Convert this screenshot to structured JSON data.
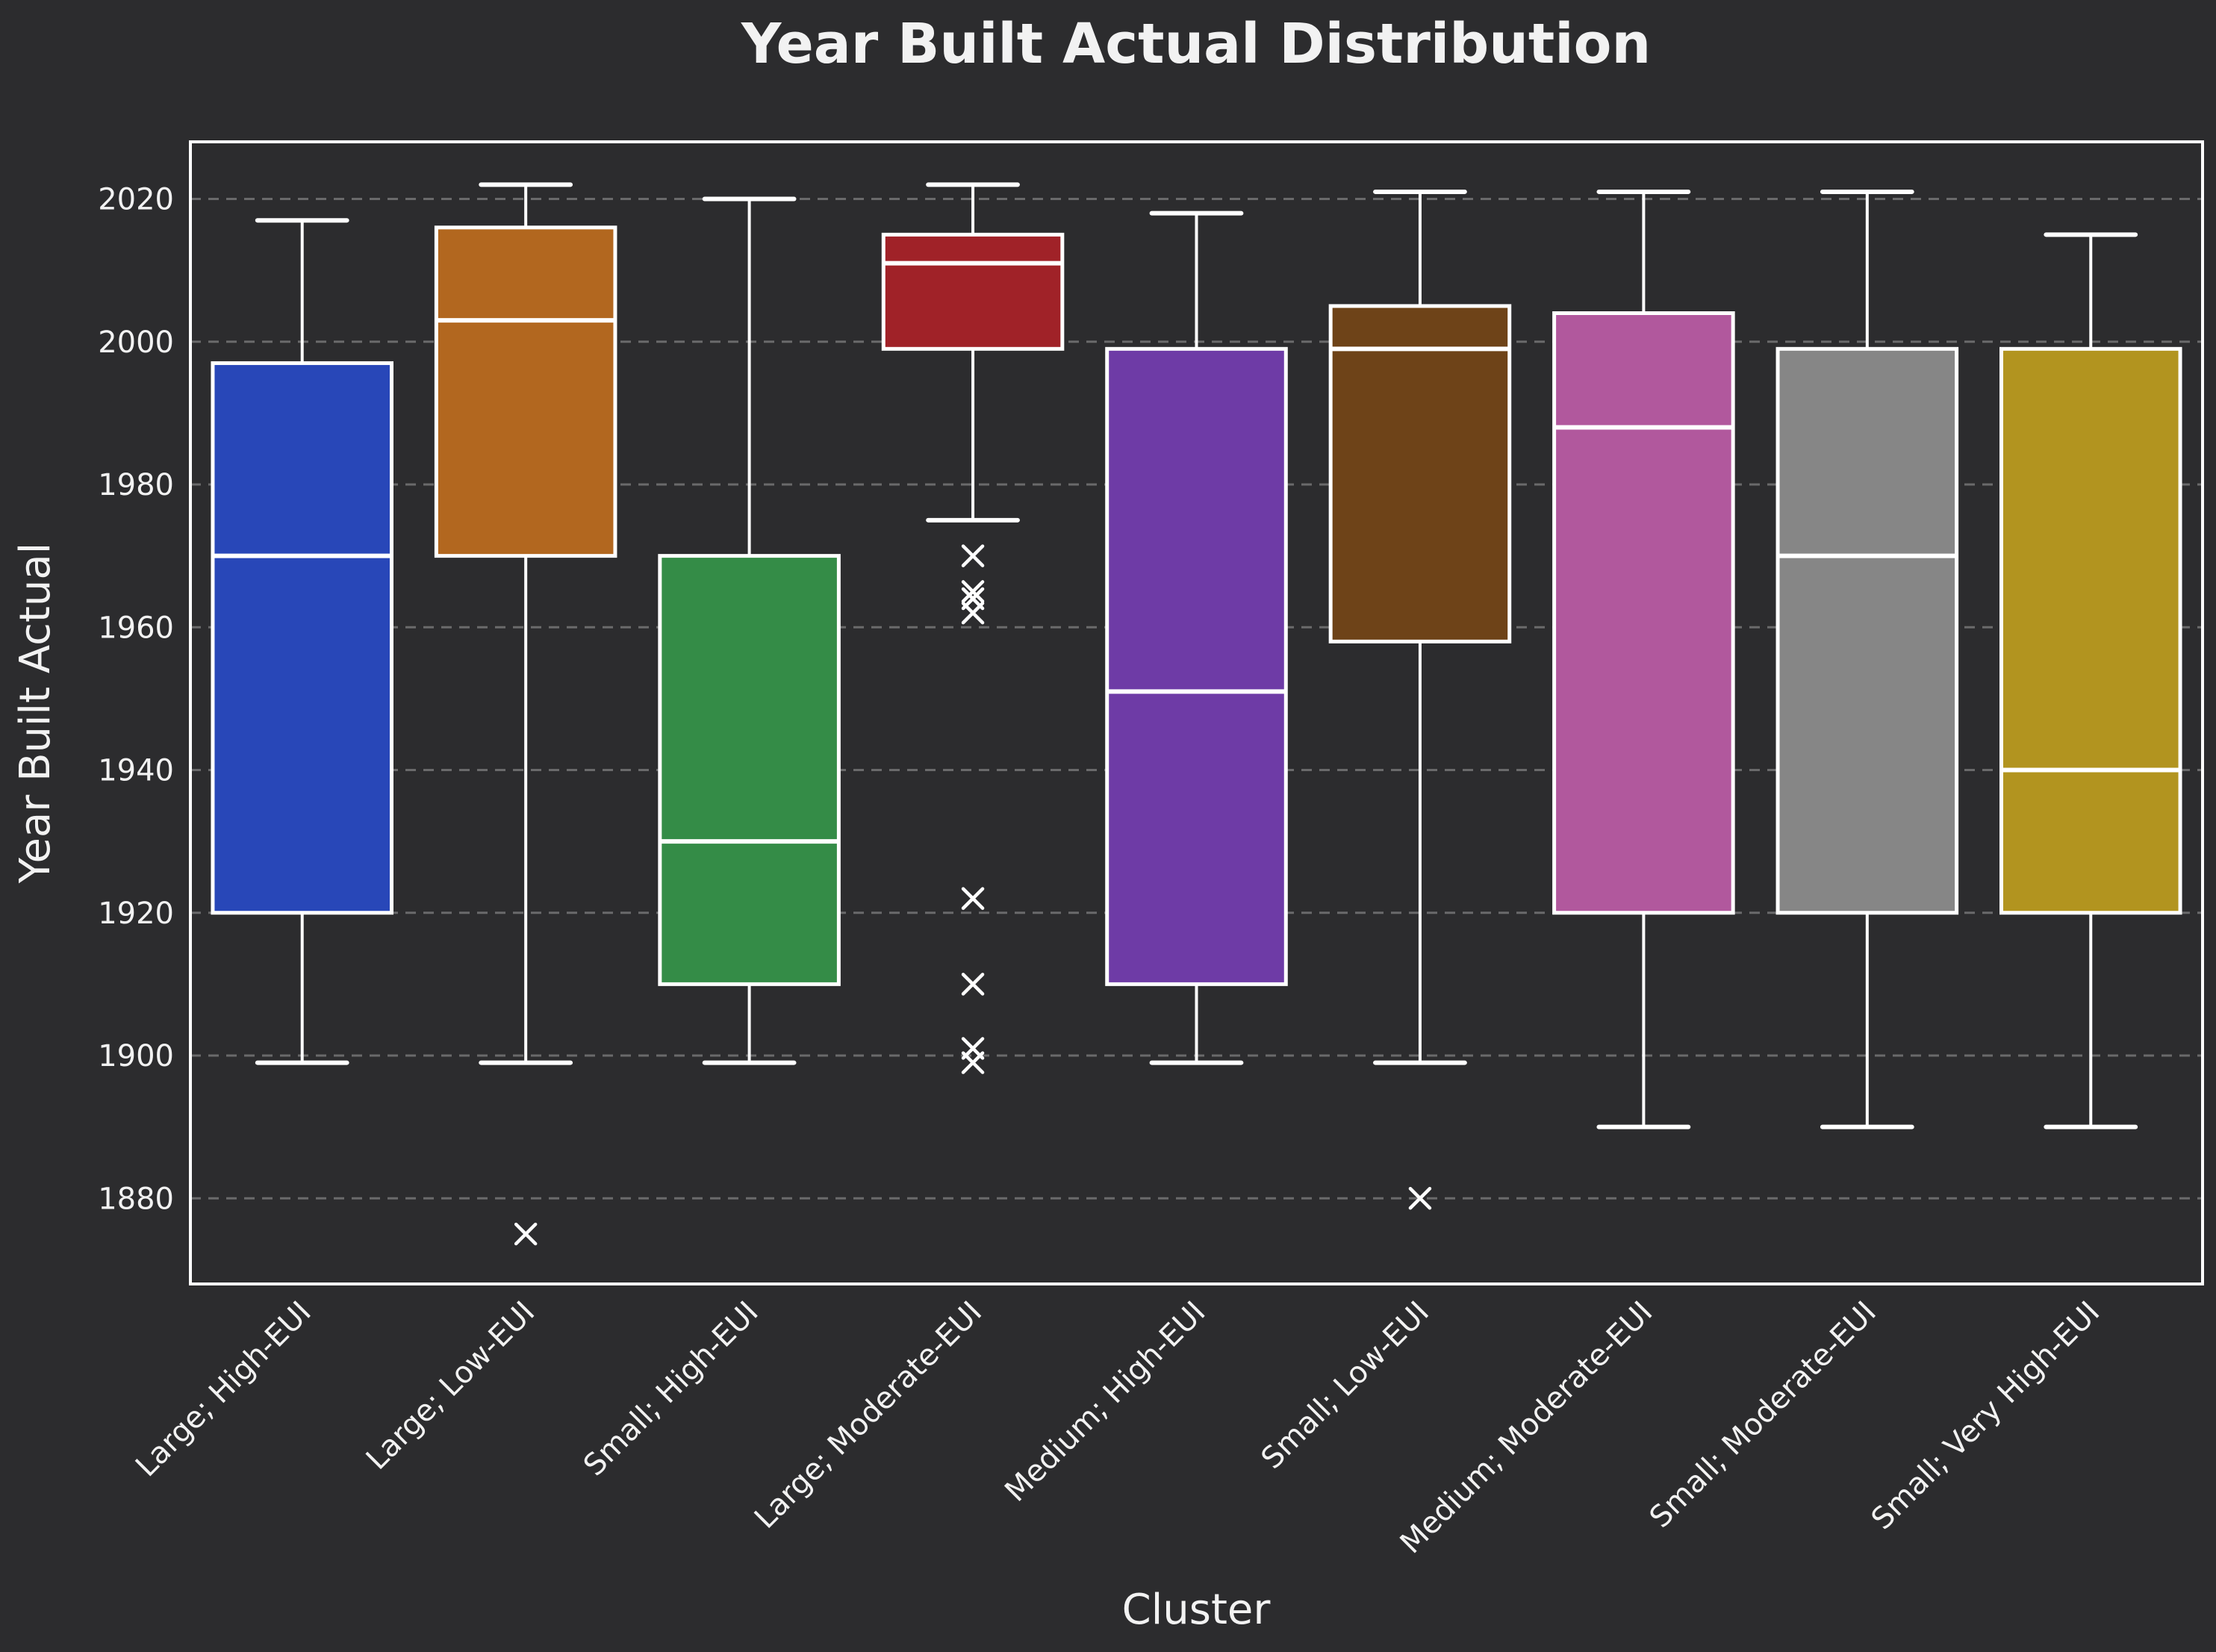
{
  "title": "Year Built Actual Distribution",
  "chart_data": {
    "type": "boxplot",
    "title": "Year Built Actual Distribution",
    "xlabel": "Cluster",
    "ylabel": "Year Built Actual",
    "ylim": [
      1868,
      2028
    ],
    "yticks": [
      1880,
      1900,
      1920,
      1940,
      1960,
      1980,
      2000,
      2020
    ],
    "grid": "horizontal-dashed",
    "legend_position": "none",
    "background_color": "#2c2c2e",
    "text_color": "#f2f2f2",
    "line_color": "#ffffff",
    "gridline_color": "rgba(200,200,200,0.40)",
    "categories": [
      "Large; High-EUI",
      "Large; Low-EUI",
      "Small; High-EUI",
      "Large; Moderate-EUI",
      "Medium; High-EUI",
      "Small; Low-EUI",
      "Medium; Moderate-EUI",
      "Small; Moderate-EUI",
      "Small; Very High-EUI"
    ],
    "boxes": [
      {
        "label": "Large; High-EUI",
        "color": "#2847b8",
        "whisker_low": 1899,
        "q1": 1920,
        "median": 1970,
        "q3": 1997,
        "whisker_high": 2017,
        "outliers": []
      },
      {
        "label": "Large; Low-EUI",
        "color": "#b2671f",
        "whisker_low": 1899,
        "q1": 1970,
        "median": 2003,
        "q3": 2016,
        "whisker_high": 2022,
        "outliers": [
          1875
        ]
      },
      {
        "label": "Small; High-EUI",
        "color": "#348c47",
        "whisker_low": 1899,
        "q1": 1910,
        "median": 1930,
        "q3": 1970,
        "whisker_high": 2020,
        "outliers": []
      },
      {
        "label": "Large; Moderate-EUI",
        "color": "#a02228",
        "whisker_low": 1975,
        "q1": 1999,
        "median": 2011,
        "q3": 2015,
        "whisker_high": 2022,
        "outliers": [
          1970,
          1965,
          1964,
          1962,
          1922,
          1910,
          1901,
          1899
        ]
      },
      {
        "label": "Medium; High-EUI",
        "color": "#6e3ba6",
        "whisker_low": 1899,
        "q1": 1910,
        "median": 1951,
        "q3": 1999,
        "whisker_high": 2018,
        "outliers": []
      },
      {
        "label": "Small; Low-EUI",
        "color": "#6e4318",
        "whisker_low": 1899,
        "q1": 1958,
        "median": 1999,
        "q3": 2005,
        "whisker_high": 2021,
        "outliers": [
          1880
        ]
      },
      {
        "label": "Medium; Moderate-EUI",
        "color": "#b1589d",
        "whisker_low": 1890,
        "q1": 1920,
        "median": 1988,
        "q3": 2004,
        "whisker_high": 2021,
        "outliers": []
      },
      {
        "label": "Small; Moderate-EUI",
        "color": "#868686",
        "whisker_low": 1890,
        "q1": 1920,
        "median": 1970,
        "q3": 1999,
        "whisker_high": 2021,
        "outliers": []
      },
      {
        "label": "Small; Very High-EUI",
        "color": "#b2941f",
        "whisker_low": 1890,
        "q1": 1920,
        "median": 1940,
        "q3": 1999,
        "whisker_high": 2015,
        "outliers": []
      }
    ]
  }
}
